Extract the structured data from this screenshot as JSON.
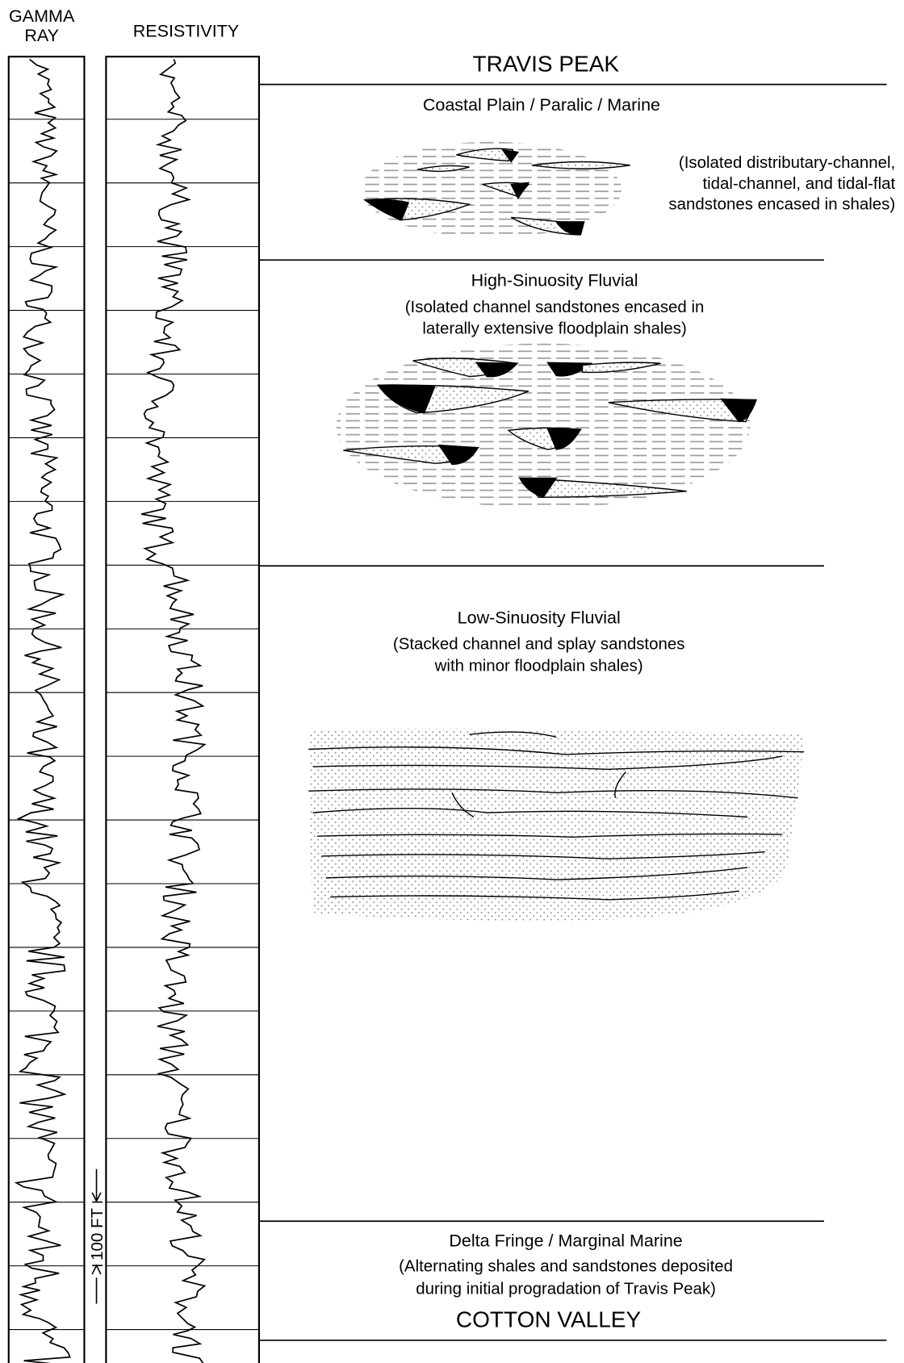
{
  "logs": {
    "gamma_ray": [
      "GAMMA",
      "RAY"
    ],
    "resistivity": "RESISTIVITY",
    "scale": "100 FT"
  },
  "top_formation": "TRAVIS PEAK",
  "bottom_formation": "COTTON VALLEY",
  "intervals": [
    {
      "title": "Coastal Plain / Paralic / Marine",
      "description": [
        "(Isolated distributary-channel,",
        "tidal-channel, and tidal-flat",
        "sandstones encased in shales)"
      ]
    },
    {
      "title": "High-Sinuosity Fluvial",
      "description": [
        "(Isolated channel sandstones encased in",
        "laterally extensive floodplain shales)"
      ]
    },
    {
      "title": "Low-Sinuosity Fluvial",
      "description": [
        "(Stacked channel and splay sandstones",
        "with minor floodplain shales)"
      ]
    },
    {
      "title": "Delta Fringe / Marginal Marine",
      "description": [
        "(Alternating shales and sandstones deposited",
        "during initial progradation of Travis Peak)"
      ]
    }
  ]
}
